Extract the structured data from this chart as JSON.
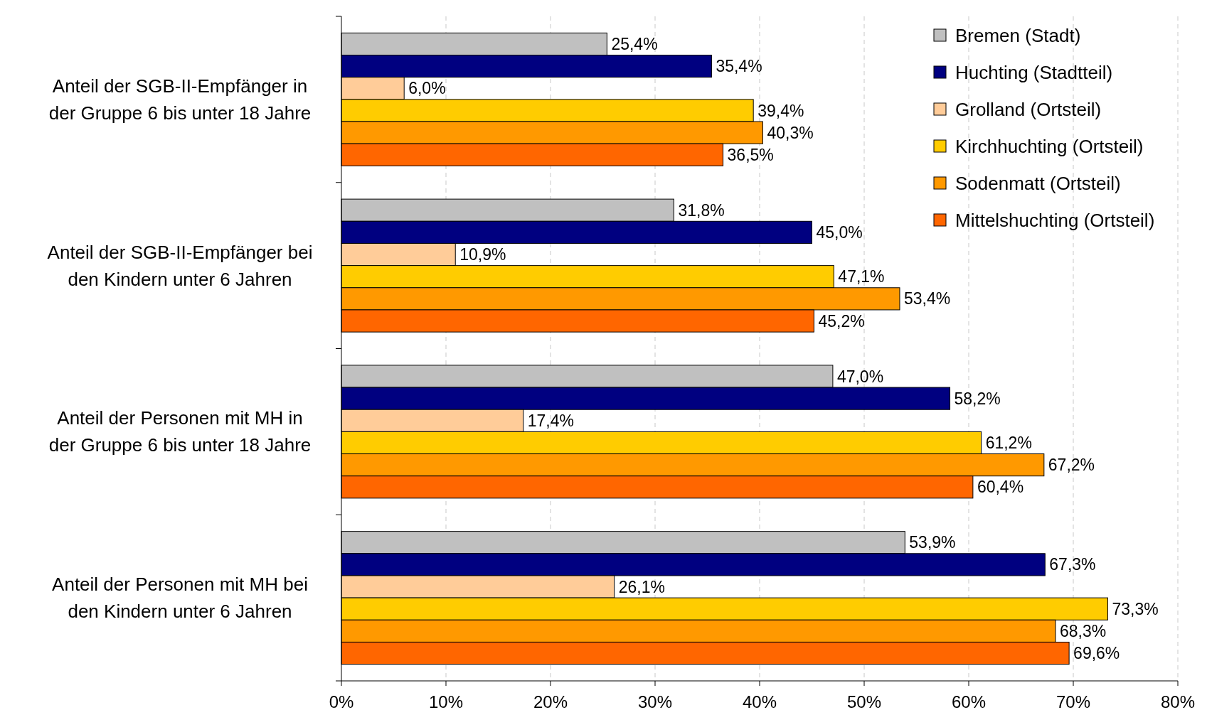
{
  "chart_data": {
    "type": "bar",
    "orientation": "horizontal",
    "categories": [
      "Anteil der SGB-II-Empfänger in der Gruppe 6 bis unter 18 Jahre",
      "Anteil der SGB-II-Empfänger bei den Kindern unter 6 Jahren",
      "Anteil der Personen mit MH in der Gruppe 6 bis unter 18 Jahre",
      "Anteil der Personen mit MH bei den Kindern unter 6 Jahren"
    ],
    "series": [
      {
        "name": "Bremen (Stadt)",
        "color": "#c0c0c0",
        "values": [
          25.4,
          31.8,
          47.0,
          53.9
        ],
        "value_labels": [
          "25,4%",
          "31,8%",
          "47,0%",
          "53,9%"
        ]
      },
      {
        "name": "Huchting (Stadtteil)",
        "color": "#000080",
        "values": [
          35.4,
          45.0,
          58.2,
          67.3
        ],
        "value_labels": [
          "35,4%",
          "45,0%",
          "58,2%",
          "67,3%"
        ]
      },
      {
        "name": "Grolland (Ortsteil)",
        "color": "#ffcc99",
        "values": [
          6.0,
          10.9,
          17.4,
          26.1
        ],
        "value_labels": [
          "6,0%",
          "10,9%",
          "17,4%",
          "26,1%"
        ]
      },
      {
        "name": "Kirchhuchting (Ortsteil)",
        "color": "#ffcc00",
        "values": [
          39.4,
          47.1,
          61.2,
          73.3
        ],
        "value_labels": [
          "39,4%",
          "47,1%",
          "61,2%",
          "73,3%"
        ]
      },
      {
        "name": "Sodenmatt (Ortsteil)",
        "color": "#ff9900",
        "values": [
          40.3,
          53.4,
          67.2,
          68.3
        ],
        "value_labels": [
          "40,3%",
          "53,4%",
          "67,2%",
          "68,3%"
        ]
      },
      {
        "name": "Mittelshuchting (Ortsteil)",
        "color": "#ff6600",
        "values": [
          36.5,
          45.2,
          60.4,
          69.6
        ],
        "value_labels": [
          "36,5%",
          "45,2%",
          "60,4%",
          "69,6%"
        ]
      }
    ],
    "xlim": [
      0,
      80
    ],
    "xticks": [
      {
        "value": 0,
        "label": "0%"
      },
      {
        "value": 10,
        "label": "10%"
      },
      {
        "value": 20,
        "label": "20%"
      },
      {
        "value": 30,
        "label": "30%"
      },
      {
        "value": 40,
        "label": "40%"
      },
      {
        "value": 50,
        "label": "50%"
      },
      {
        "value": 60,
        "label": "60%"
      },
      {
        "value": 70,
        "label": "70%"
      },
      {
        "value": 80,
        "label": "80%"
      }
    ],
    "grid": "x",
    "legend": "top right"
  }
}
